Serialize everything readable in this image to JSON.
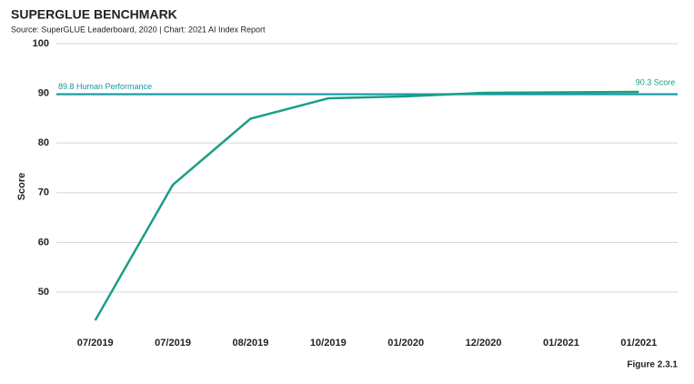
{
  "chart_data": {
    "type": "line",
    "title": "SUPERGLUE BENCHMARK",
    "subtitle": "Source: SuperGLUE Leaderboard, 2020 | Chart: 2021 AI Index Report",
    "y_label": "Score",
    "figure_label": "Figure 2.3.1",
    "categories": [
      "07/2019",
      "07/2019",
      "08/2019",
      "10/2019",
      "01/2020",
      "12/2020",
      "01/2021",
      "01/2021"
    ],
    "series": [
      {
        "name": "Score",
        "color": "#1a9e86",
        "values": [
          44.3,
          71.6,
          84.9,
          89.0,
          89.4,
          90.1,
          90.2,
          90.3
        ]
      }
    ],
    "end_label": "90.3 Score",
    "reference_line": {
      "value": 89.8,
      "label": "89.8 Human Performance",
      "color": "#139aa0"
    },
    "ylim": [
      44,
      100
    ],
    "yticks": [
      50,
      60,
      70,
      80,
      90,
      100
    ],
    "grid": true
  }
}
